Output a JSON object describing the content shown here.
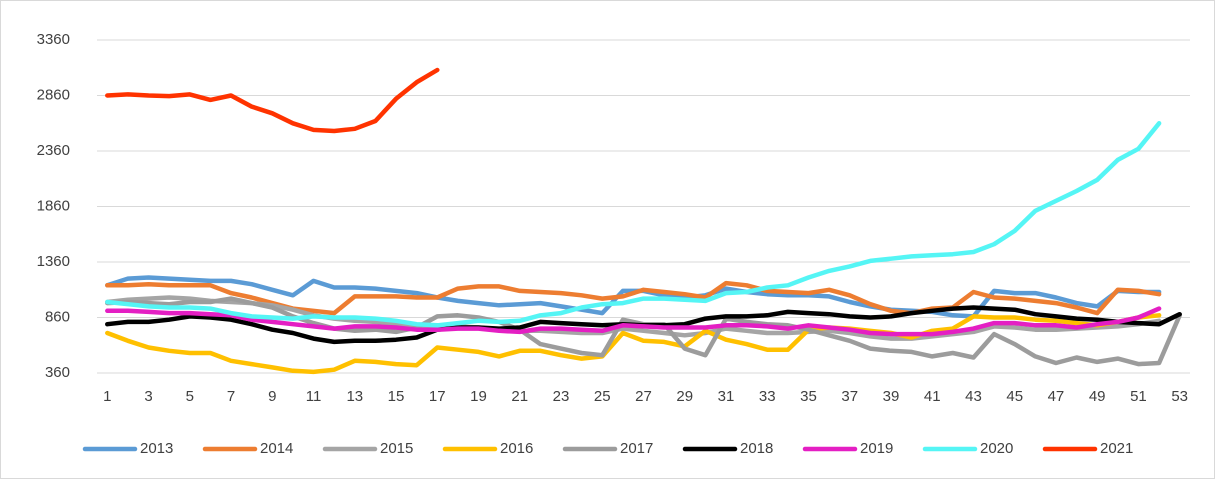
{
  "chart_data": {
    "type": "line",
    "x": [
      1,
      2,
      3,
      4,
      5,
      6,
      7,
      8,
      9,
      10,
      11,
      12,
      13,
      14,
      15,
      16,
      17,
      18,
      19,
      20,
      21,
      22,
      23,
      24,
      25,
      26,
      27,
      28,
      29,
      30,
      31,
      32,
      33,
      34,
      35,
      36,
      37,
      38,
      39,
      40,
      41,
      42,
      43,
      44,
      45,
      46,
      47,
      48,
      49,
      50,
      51,
      52,
      53
    ],
    "xlim": [
      0.5,
      53.5
    ],
    "xticks": [
      1,
      3,
      5,
      7,
      9,
      11,
      13,
      15,
      17,
      19,
      21,
      23,
      25,
      27,
      29,
      31,
      33,
      35,
      37,
      39,
      41,
      43,
      45,
      47,
      49,
      51,
      53
    ],
    "ylim": [
      360,
      3360
    ],
    "yticks": [
      360,
      860,
      1360,
      1860,
      2360,
      2860,
      3360
    ],
    "grid": true,
    "legend": "bottom",
    "series": [
      {
        "name": "2013",
        "color": "#5b9bd5",
        "values": [
          1150,
          1210,
          1220,
          1210,
          1200,
          1190,
          1190,
          1160,
          1110,
          1060,
          1190,
          1130,
          1130,
          1120,
          1100,
          1080,
          1040,
          1010,
          990,
          970,
          980,
          990,
          960,
          930,
          900,
          1100,
          1100,
          1060,
          1040,
          1060,
          1120,
          1090,
          1070,
          1060,
          1060,
          1050,
          1000,
          960,
          930,
          920,
          910,
          880,
          870,
          1100,
          1080,
          1080,
          1040,
          990,
          960,
          1100,
          1090,
          1090,
          null
        ]
      },
      {
        "name": "2014",
        "color": "#ed7d31",
        "values": [
          1150,
          1150,
          1160,
          1150,
          1150,
          1150,
          1080,
          1040,
          990,
          940,
          920,
          900,
          1050,
          1050,
          1050,
          1040,
          1040,
          1120,
          1140,
          1140,
          1100,
          1090,
          1080,
          1060,
          1030,
          1050,
          1110,
          1090,
          1070,
          1040,
          1170,
          1150,
          1100,
          1090,
          1080,
          1110,
          1060,
          980,
          920,
          900,
          940,
          950,
          1090,
          1040,
          1030,
          1010,
          990,
          950,
          900,
          1110,
          1100,
          1070,
          null
        ]
      },
      {
        "name": "2015",
        "color": "#a5a5a5",
        "values": [
          1000,
          1020,
          1030,
          1040,
          1030,
          1010,
          1000,
          990,
          970,
          930,
          880,
          850,
          830,
          820,
          800,
          790,
          790,
          780,
          770,
          750,
          740,
          740,
          730,
          720,
          720,
          760,
          740,
          720,
          700,
          720,
          760,
          740,
          720,
          720,
          730,
          740,
          720,
          690,
          670,
          670,
          690,
          710,
          730,
          780,
          770,
          750,
          750,
          760,
          770,
          780,
          800,
          830,
          null
        ]
      },
      {
        "name": "2016",
        "color": "#ffc000",
        "values": [
          720,
          650,
          590,
          560,
          540,
          540,
          470,
          440,
          410,
          380,
          370,
          390,
          470,
          460,
          440,
          430,
          590,
          570,
          550,
          510,
          560,
          560,
          520,
          490,
          510,
          720,
          650,
          640,
          600,
          740,
          660,
          620,
          570,
          570,
          750,
          770,
          760,
          740,
          720,
          680,
          740,
          760,
          870,
          860,
          860,
          840,
          830,
          810,
          790,
          820,
          860,
          880,
          null
        ]
      },
      {
        "name": "2017",
        "color": "#9c9c9c",
        "values": [
          990,
          1000,
          990,
          980,
          1000,
          1000,
          1030,
          990,
          950,
          870,
          810,
          760,
          740,
          750,
          730,
          770,
          870,
          880,
          860,
          820,
          750,
          620,
          580,
          540,
          520,
          840,
          800,
          800,
          580,
          520,
          850,
          820,
          800,
          790,
          750,
          700,
          650,
          580,
          560,
          550,
          510,
          540,
          500,
          710,
          620,
          510,
          450,
          500,
          460,
          490,
          440,
          450,
          880
        ]
      },
      {
        "name": "2018",
        "color": "#000000",
        "values": [
          800,
          820,
          820,
          840,
          870,
          860,
          840,
          800,
          750,
          720,
          670,
          640,
          650,
          650,
          660,
          680,
          750,
          770,
          770,
          760,
          770,
          820,
          810,
          800,
          790,
          800,
          790,
          790,
          800,
          850,
          870,
          870,
          880,
          910,
          900,
          890,
          870,
          860,
          870,
          900,
          920,
          940,
          950,
          940,
          930,
          890,
          870,
          850,
          840,
          820,
          810,
          800,
          890
        ]
      },
      {
        "name": "2019",
        "color": "#e41fc3",
        "values": [
          920,
          920,
          910,
          900,
          900,
          890,
          880,
          840,
          820,
          800,
          780,
          760,
          780,
          780,
          770,
          750,
          750,
          760,
          760,
          740,
          730,
          760,
          760,
          750,
          740,
          790,
          780,
          770,
          770,
          770,
          790,
          790,
          780,
          760,
          790,
          770,
          750,
          720,
          710,
          710,
          710,
          730,
          760,
          810,
          810,
          790,
          790,
          770,
          800,
          820,
          860,
          940,
          null
        ]
      },
      {
        "name": "2020",
        "color": "#55f5f5",
        "values": [
          1000,
          980,
          960,
          950,
          950,
          940,
          900,
          870,
          860,
          850,
          870,
          860,
          860,
          850,
          830,
          800,
          790,
          810,
          830,
          820,
          830,
          880,
          900,
          950,
          980,
          990,
          1030,
          1030,
          1020,
          1010,
          1080,
          1090,
          1130,
          1150,
          1220,
          1280,
          1320,
          1370,
          1390,
          1410,
          1420,
          1430,
          1450,
          1520,
          1640,
          1820,
          1910,
          2000,
          2100,
          2280,
          2380,
          2610,
          null
        ]
      },
      {
        "name": "2021",
        "color": "#ff3300",
        "values": [
          2860,
          2870,
          2860,
          2855,
          2870,
          2820,
          2860,
          2760,
          2700,
          2610,
          2550,
          2540,
          2560,
          2630,
          2830,
          2980,
          3090,
          null,
          null,
          null,
          null,
          null,
          null,
          null,
          null,
          null,
          null,
          null,
          null,
          null,
          null,
          null,
          null,
          null,
          null,
          null,
          null,
          null,
          null,
          null,
          null,
          null,
          null,
          null,
          null,
          null,
          null,
          null,
          null,
          null,
          null,
          null,
          null
        ]
      }
    ]
  }
}
